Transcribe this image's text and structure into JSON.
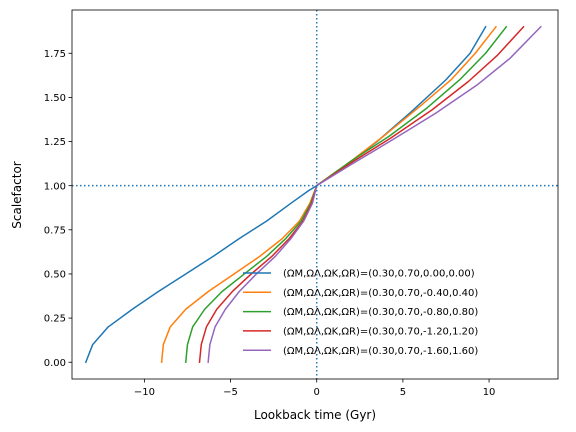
{
  "chart_data": {
    "type": "line",
    "title": "",
    "xlabel": "Lookback time (Gyr)",
    "ylabel": "Scalefactor",
    "xlim": [
      -14.2,
      14.0
    ],
    "ylim": [
      -0.095,
      1.995
    ],
    "xticks": [
      -10,
      -5,
      0,
      5,
      10
    ],
    "xtick_labels": [
      "−10",
      "−5",
      "0",
      "5",
      "10"
    ],
    "yticks": [
      0.0,
      0.25,
      0.5,
      0.75,
      1.0,
      1.25,
      1.5,
      1.75
    ],
    "ytick_labels": [
      "0.00",
      "0.25",
      "0.50",
      "0.75",
      "1.00",
      "1.25",
      "1.50",
      "1.75"
    ],
    "grid": false,
    "legend_position": "lower-right",
    "reference_lines": [
      {
        "orientation": "vertical",
        "value": 0,
        "style": "dotted",
        "color": "#1f77b4"
      },
      {
        "orientation": "horizontal",
        "value": 1,
        "style": "dotted",
        "color": "#1f77b4"
      }
    ],
    "series": [
      {
        "name": "(ΩM,ΩΛ,ΩK,ΩR)=(0.30,0.70,0.00,0.00)",
        "color": "#1f77b4",
        "x": [
          -13.4,
          -13.0,
          -12.1,
          -10.7,
          -9.2,
          -7.6,
          -6.0,
          -4.5,
          -2.9,
          -1.5,
          -0.5,
          0,
          1.5,
          3.5,
          5.5,
          7.5,
          8.9,
          9.8
        ],
        "y": [
          0.0,
          0.1,
          0.2,
          0.3,
          0.4,
          0.5,
          0.6,
          0.7,
          0.8,
          0.9,
          0.97,
          1.0,
          1.1,
          1.25,
          1.42,
          1.6,
          1.75,
          1.9
        ]
      },
      {
        "name": "(ΩM,ΩΛ,ΩK,ΩR)=(0.30,0.70,-0.40,0.40)",
        "color": "#ff7f0e",
        "x": [
          -9.0,
          -8.9,
          -8.5,
          -7.6,
          -6.3,
          -4.8,
          -3.3,
          -2.0,
          -1.0,
          -0.4,
          0,
          2.0,
          4.0,
          6.0,
          7.8,
          9.2,
          10.4
        ],
        "y": [
          0.0,
          0.1,
          0.2,
          0.3,
          0.4,
          0.5,
          0.6,
          0.7,
          0.8,
          0.9,
          1.0,
          1.14,
          1.29,
          1.45,
          1.6,
          1.75,
          1.9
        ]
      },
      {
        "name": "(ΩM,ΩΛ,ΩK,ΩR)=(0.30,0.70,-0.80,0.80)",
        "color": "#2ca02c",
        "x": [
          -7.6,
          -7.5,
          -7.2,
          -6.5,
          -5.5,
          -4.2,
          -2.9,
          -1.8,
          -0.9,
          -0.35,
          0,
          2.0,
          4.2,
          6.4,
          8.3,
          9.8,
          11.0
        ],
        "y": [
          0.0,
          0.1,
          0.2,
          0.3,
          0.4,
          0.5,
          0.6,
          0.7,
          0.8,
          0.9,
          1.0,
          1.14,
          1.28,
          1.44,
          1.6,
          1.75,
          1.9
        ]
      },
      {
        "name": "(ΩM,ΩΛ,ΩK,ΩR)=(0.30,0.70,-1.20,1.20)",
        "color": "#d62728",
        "x": [
          -6.8,
          -6.7,
          -6.4,
          -5.8,
          -4.9,
          -3.8,
          -2.6,
          -1.6,
          -0.8,
          -0.3,
          0,
          2.0,
          4.3,
          6.7,
          8.8,
          10.5,
          12.0
        ],
        "y": [
          0.0,
          0.1,
          0.2,
          0.3,
          0.4,
          0.5,
          0.6,
          0.7,
          0.8,
          0.9,
          1.0,
          1.13,
          1.27,
          1.43,
          1.59,
          1.74,
          1.9
        ]
      },
      {
        "name": "(ΩM,ΩΛ,ΩK,ΩR)=(0.30,0.70,-1.60,1.60)",
        "color": "#9467bd",
        "x": [
          -6.3,
          -6.2,
          -5.9,
          -5.3,
          -4.5,
          -3.5,
          -2.4,
          -1.5,
          -0.75,
          -0.25,
          0,
          2.0,
          4.4,
          6.9,
          9.3,
          11.2,
          13.0
        ],
        "y": [
          0.0,
          0.1,
          0.2,
          0.3,
          0.4,
          0.5,
          0.6,
          0.7,
          0.8,
          0.9,
          1.0,
          1.12,
          1.26,
          1.41,
          1.57,
          1.72,
          1.9
        ]
      }
    ]
  }
}
